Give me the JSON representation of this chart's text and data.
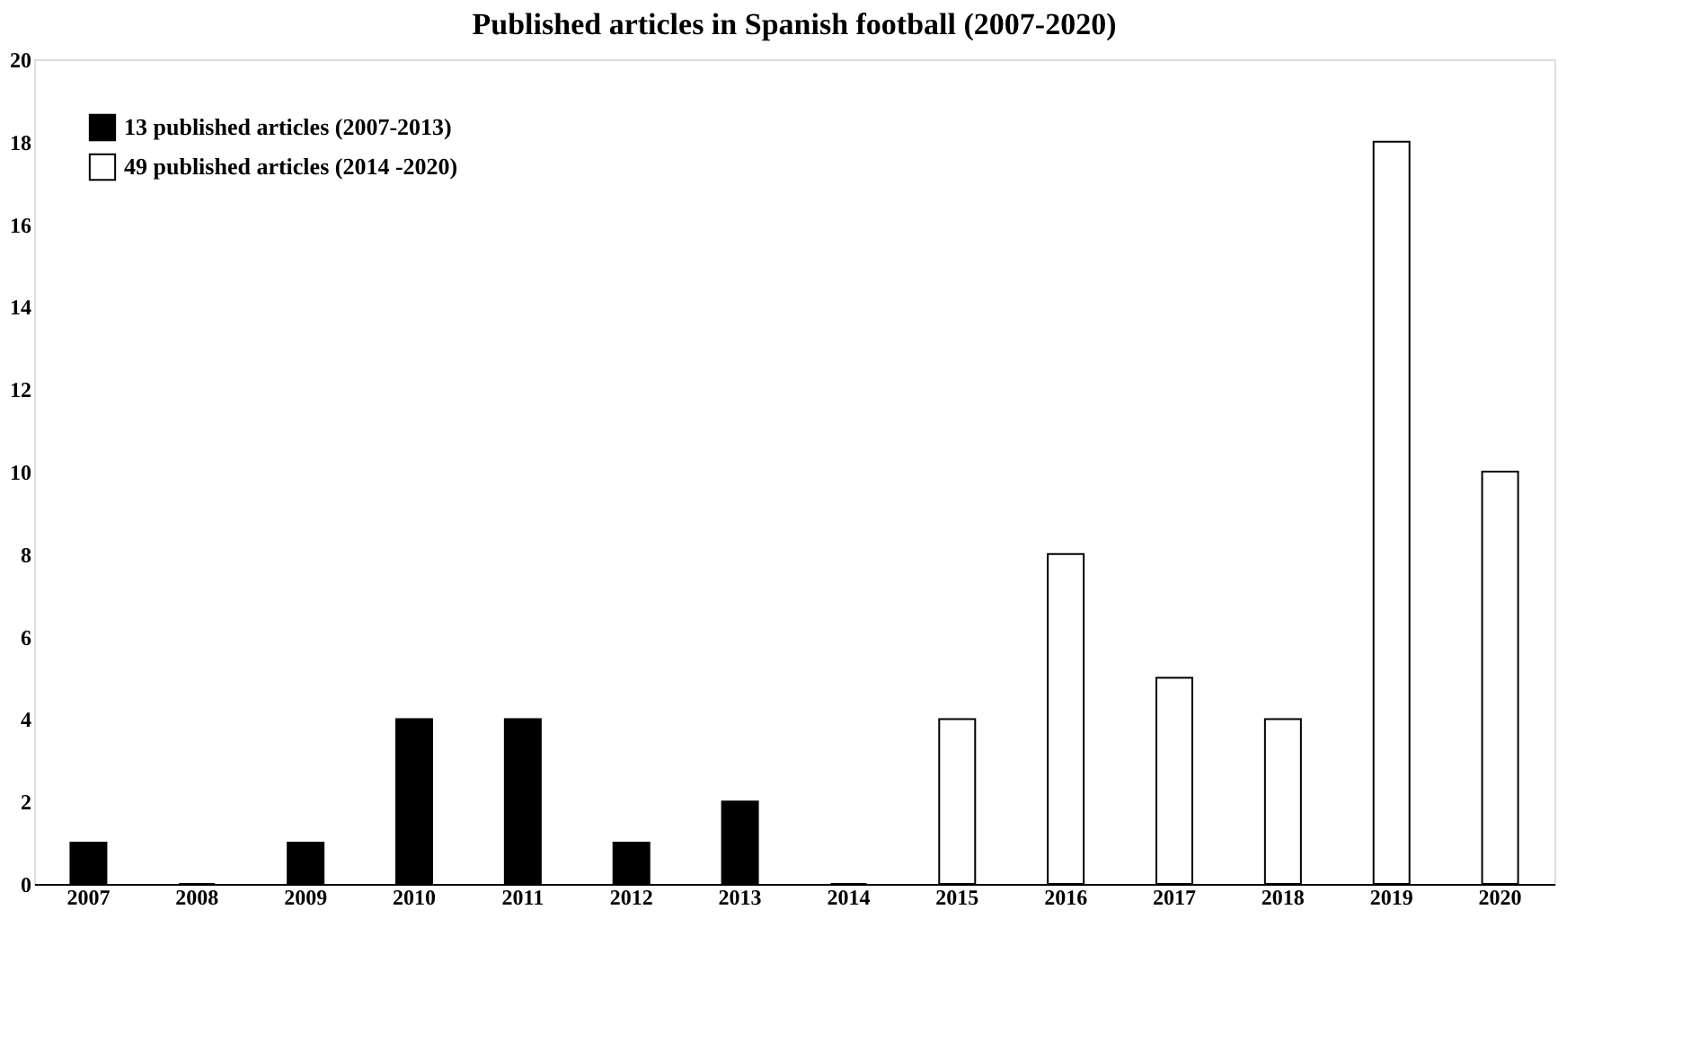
{
  "chart_data": {
    "type": "bar",
    "title": "Published articles in Spanish football (2007-2020)",
    "categories": [
      "2007",
      "2008",
      "2009",
      "2010",
      "2011",
      "2012",
      "2013",
      "2014",
      "2015",
      "2016",
      "2017",
      "2018",
      "2019",
      "2020"
    ],
    "series": [
      {
        "name": "13 published articles (2007-2013)",
        "color": "#000000",
        "values": [
          1,
          0,
          1,
          4,
          4,
          1,
          2,
          null,
          null,
          null,
          null,
          null,
          null,
          null
        ]
      },
      {
        "name": "49 published articles (2014 -2020)",
        "color": "#ffffff",
        "values": [
          null,
          null,
          null,
          null,
          null,
          null,
          null,
          0,
          4,
          8,
          5,
          4,
          18,
          10
        ]
      }
    ],
    "ylim": [
      0,
      20
    ],
    "yticks": [
      0,
      2,
      4,
      6,
      8,
      10,
      12,
      14,
      16,
      18,
      20
    ],
    "grid": false,
    "legend": "top left"
  }
}
